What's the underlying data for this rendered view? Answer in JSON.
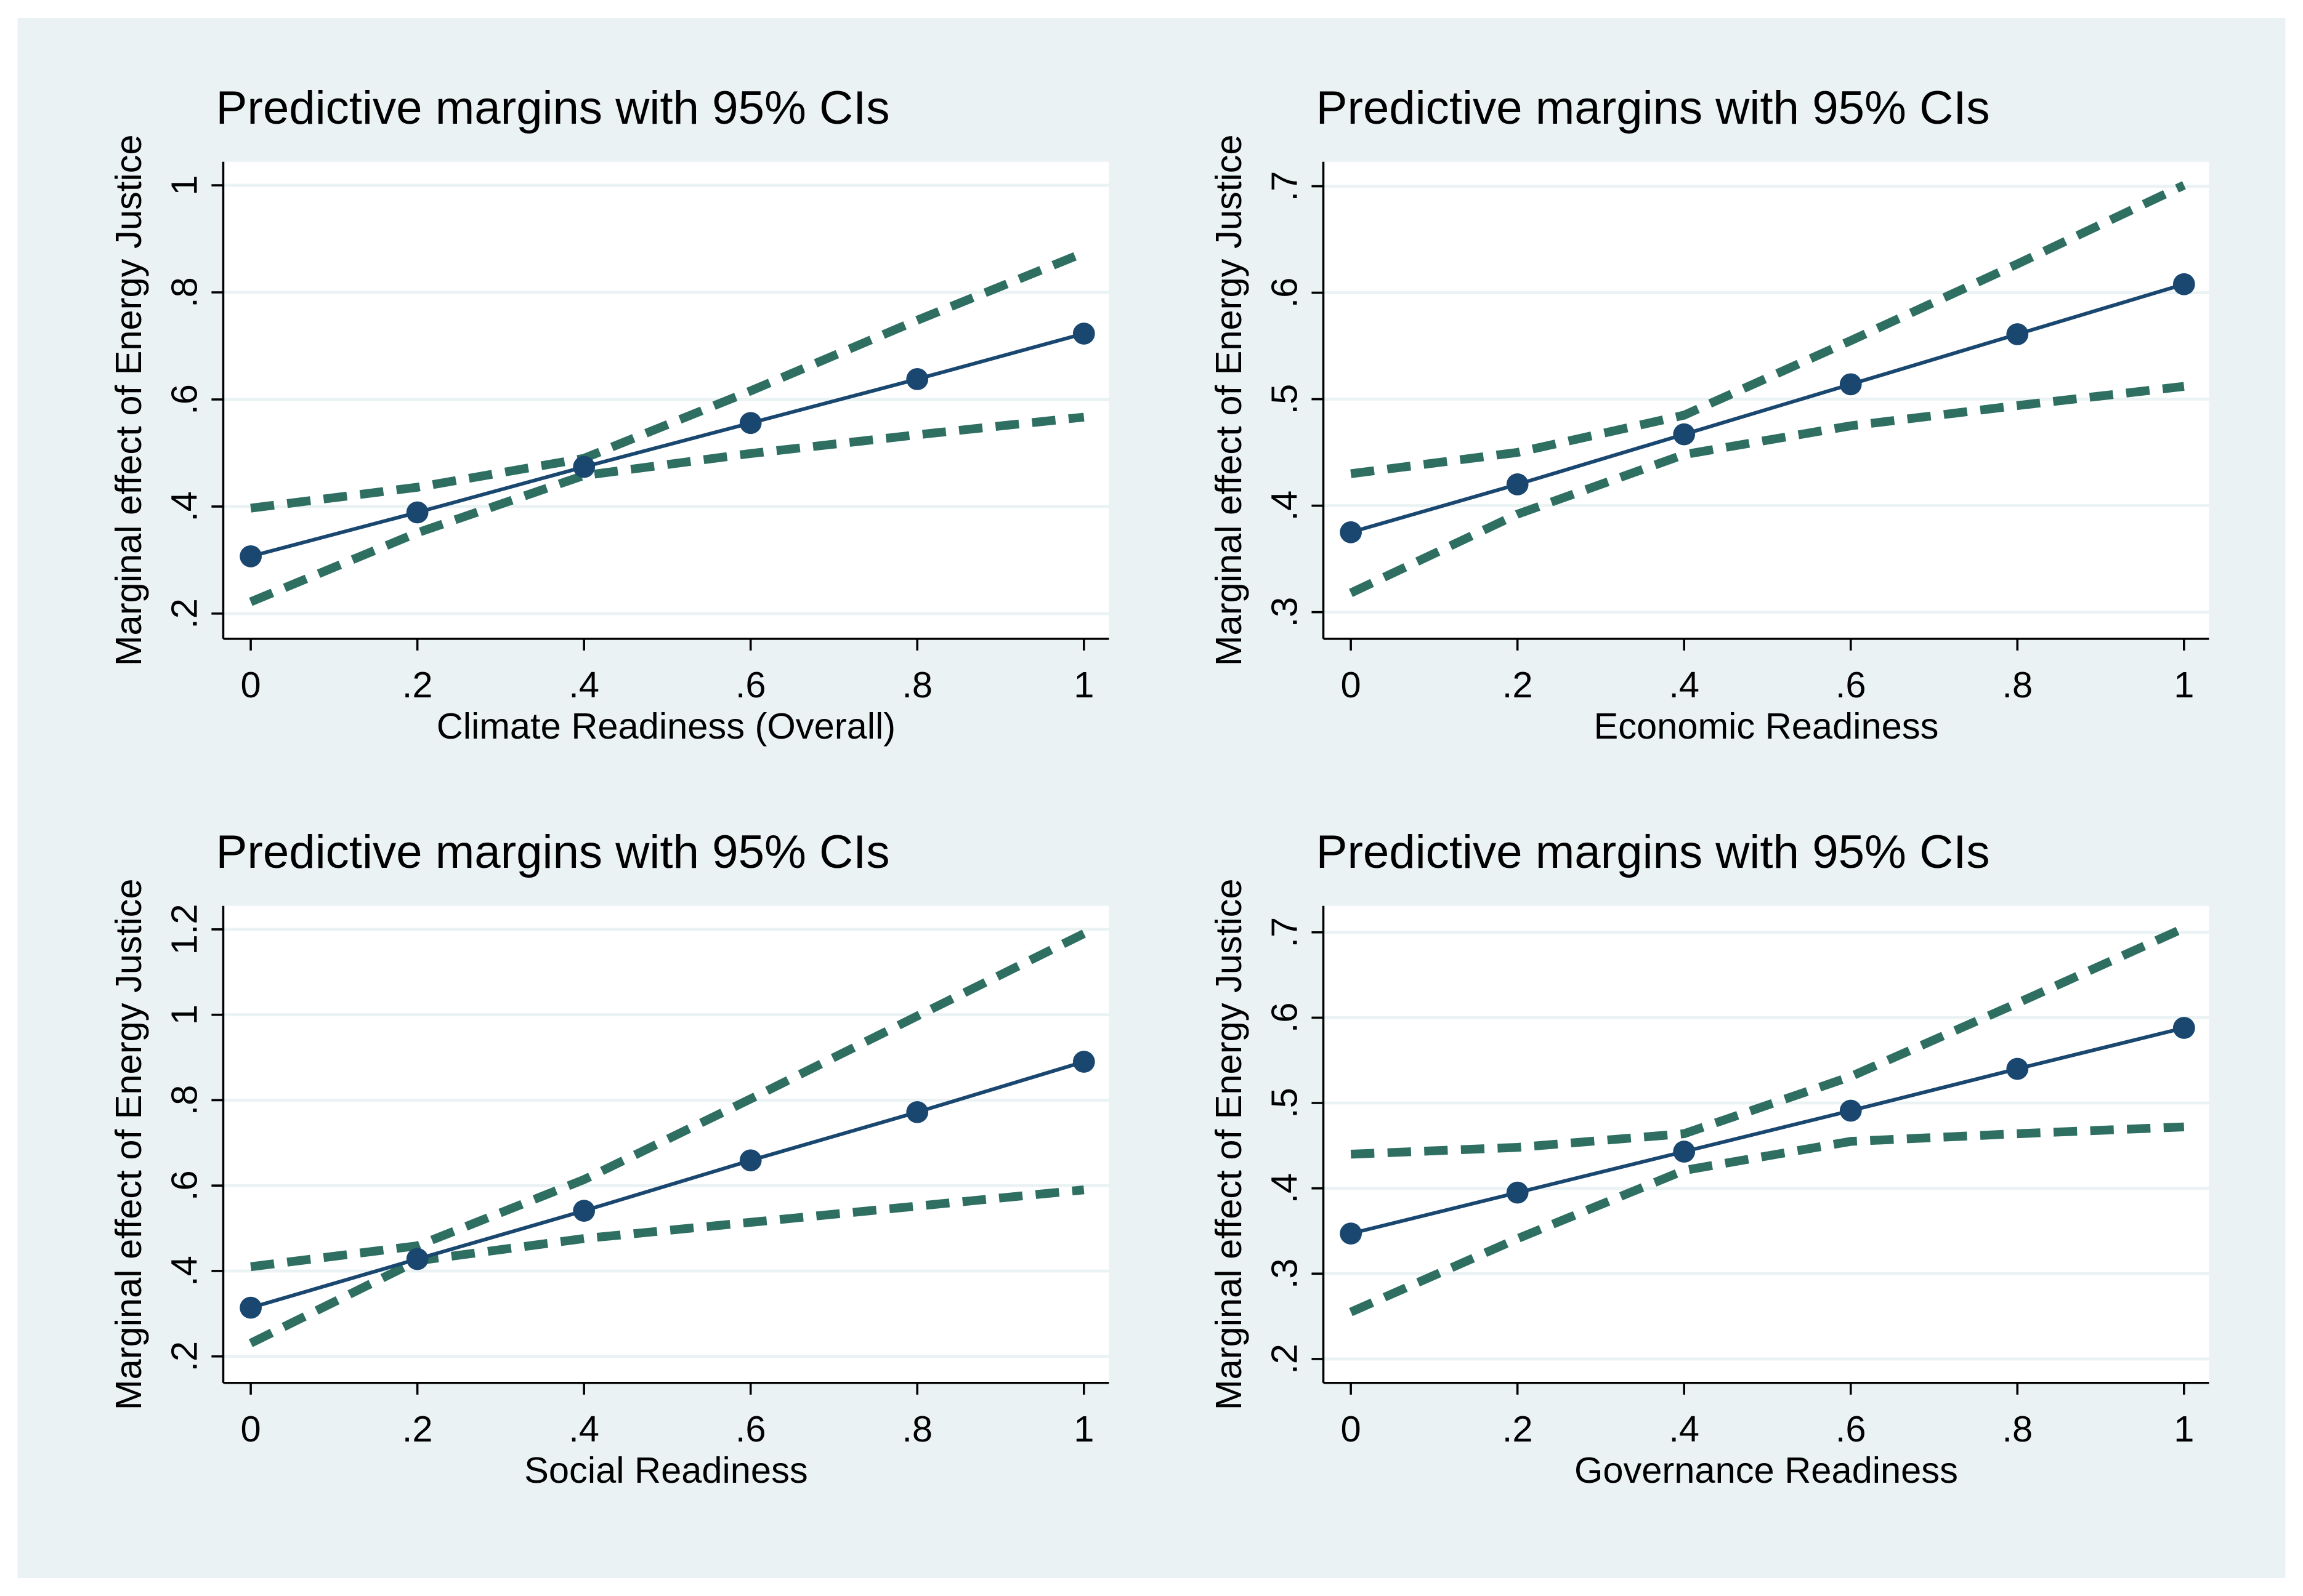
{
  "chart_data": [
    {
      "type": "line",
      "title": "Predictive margins with 95% CIs",
      "xlabel": "Climate Readiness (Overall)",
      "ylabel": "Marginal effect of Energy Justice",
      "x": [
        0,
        0.2,
        0.4,
        0.6,
        0.8,
        1
      ],
      "series": [
        {
          "color": "#1a476f",
          "line_style": "solid",
          "markers": true,
          "values": [
            0.307,
            0.389,
            0.474,
            0.556,
            0.638,
            0.723
          ]
        },
        {
          "color": "#2e6f62",
          "line_style": "dashed",
          "markers": false,
          "values": [
            0.397,
            0.436,
            0.49,
            0.616,
            0.748,
            0.874
          ]
        },
        {
          "color": "#2e6f62",
          "line_style": "dashed",
          "markers": false,
          "values": [
            0.222,
            0.351,
            0.458,
            0.499,
            0.534,
            0.567
          ]
        }
      ],
      "xlim": [
        -0.033,
        1.03
      ],
      "ylim": [
        0.153,
        1.044
      ],
      "xticks": [
        0,
        {
          "value": 0.2,
          "label": ".2"
        },
        {
          "value": 0.4,
          "label": ".4"
        },
        {
          "value": 0.6,
          "label": ".6"
        },
        {
          "value": 0.8,
          "label": ".8"
        },
        1
      ],
      "yticks": [
        {
          "value": 0.2,
          "label": ".2"
        },
        {
          "value": 0.4,
          "label": ".4"
        },
        {
          "value": 0.6,
          "label": ".6"
        },
        {
          "value": 0.8,
          "label": ".8"
        },
        1
      ],
      "grid": true
    },
    {
      "type": "line",
      "title": "Predictive margins with 95% CIs",
      "xlabel": "Economic Readiness",
      "ylabel": "Marginal effect of Energy Justice",
      "x": [
        0,
        0.2,
        0.4,
        0.6,
        0.8,
        1
      ],
      "series": [
        {
          "color": "#1a476f",
          "line_style": "solid",
          "markers": true,
          "values": [
            0.375,
            0.42,
            0.467,
            0.514,
            0.561,
            0.608
          ]
        },
        {
          "color": "#2e6f62",
          "line_style": "dashed",
          "markers": false,
          "values": [
            0.43,
            0.45,
            0.485,
            0.555,
            0.627,
            0.701
          ]
        },
        {
          "color": "#2e6f62",
          "line_style": "dashed",
          "markers": false,
          "values": [
            0.318,
            0.392,
            0.448,
            0.475,
            0.494,
            0.512
          ]
        }
      ],
      "xlim": [
        -0.033,
        1.03
      ],
      "ylim": [
        0.275,
        0.723
      ],
      "xticks": [
        0,
        {
          "value": 0.2,
          "label": ".2"
        },
        {
          "value": 0.4,
          "label": ".4"
        },
        {
          "value": 0.6,
          "label": ".6"
        },
        {
          "value": 0.8,
          "label": ".8"
        },
        1
      ],
      "yticks": [
        {
          "value": 0.3,
          "label": ".3"
        },
        {
          "value": 0.4,
          "label": ".4"
        },
        {
          "value": 0.5,
          "label": ".5"
        },
        {
          "value": 0.6,
          "label": ".6"
        },
        {
          "value": 0.7,
          "label": ".7"
        }
      ],
      "grid": true
    },
    {
      "type": "line",
      "title": "Predictive margins with 95% CIs",
      "xlabel": "Social Readiness",
      "ylabel": "Marginal effect of Energy Justice",
      "x": [
        0,
        0.2,
        0.4,
        0.6,
        0.8,
        1
      ],
      "series": [
        {
          "color": "#1a476f",
          "line_style": "solid",
          "markers": true,
          "values": [
            0.314,
            0.428,
            0.541,
            0.659,
            0.772,
            0.89
          ]
        },
        {
          "color": "#2e6f62",
          "line_style": "dashed",
          "markers": false,
          "values": [
            0.41,
            0.459,
            0.614,
            0.803,
            0.997,
            1.19
          ]
        },
        {
          "color": "#2e6f62",
          "line_style": "dashed",
          "markers": false,
          "values": [
            0.231,
            0.424,
            0.476,
            0.514,
            0.552,
            0.59
          ]
        }
      ],
      "xlim": [
        -0.033,
        1.03
      ],
      "ylim": [
        0.138,
        1.255
      ],
      "xticks": [
        0,
        {
          "value": 0.2,
          "label": ".2"
        },
        {
          "value": 0.4,
          "label": ".4"
        },
        {
          "value": 0.6,
          "label": ".6"
        },
        {
          "value": 0.8,
          "label": ".8"
        },
        1
      ],
      "yticks": [
        {
          "value": 0.2,
          "label": ".2"
        },
        {
          "value": 0.4,
          "label": ".4"
        },
        {
          "value": 0.6,
          "label": ".6"
        },
        {
          "value": 0.8,
          "label": ".8"
        },
        1,
        1.2
      ],
      "grid": true
    },
    {
      "type": "line",
      "title": "Predictive margins with 95% CIs",
      "xlabel": "Governance Readiness",
      "ylabel": "Marginal effect of Energy Justice",
      "x": [
        0,
        0.2,
        0.4,
        0.6,
        0.8,
        1
      ],
      "series": [
        {
          "color": "#1a476f",
          "line_style": "solid",
          "markers": true,
          "values": [
            0.347,
            0.395,
            0.443,
            0.491,
            0.54,
            0.588
          ]
        },
        {
          "color": "#2e6f62",
          "line_style": "dashed",
          "markers": false,
          "values": [
            0.44,
            0.448,
            0.464,
            0.531,
            0.617,
            0.705
          ]
        },
        {
          "color": "#2e6f62",
          "line_style": "dashed",
          "markers": false,
          "values": [
            0.255,
            0.341,
            0.421,
            0.455,
            0.464,
            0.472
          ]
        }
      ],
      "xlim": [
        -0.033,
        1.03
      ],
      "ylim": [
        0.172,
        0.731
      ],
      "xticks": [
        0,
        {
          "value": 0.2,
          "label": ".2"
        },
        {
          "value": 0.4,
          "label": ".4"
        },
        {
          "value": 0.6,
          "label": ".6"
        },
        {
          "value": 0.8,
          "label": ".8"
        },
        1
      ],
      "yticks": [
        {
          "value": 0.2,
          "label": ".2"
        },
        {
          "value": 0.3,
          "label": ".3"
        },
        {
          "value": 0.4,
          "label": ".4"
        },
        {
          "value": 0.5,
          "label": ".5"
        },
        {
          "value": 0.6,
          "label": ".6"
        },
        {
          "value": 0.7,
          "label": ".7"
        }
      ],
      "grid": true
    }
  ]
}
